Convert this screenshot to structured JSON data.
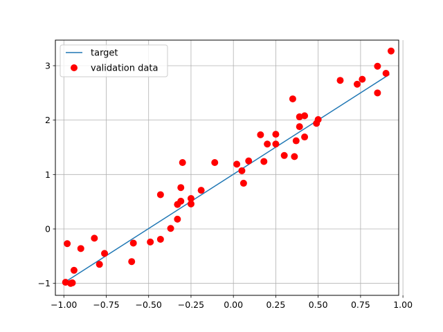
{
  "chart_data": {
    "type": "scatter",
    "title": "",
    "xlabel": "",
    "ylabel": "",
    "xlim": [
      -1.05,
      0.975
    ],
    "ylim": [
      -1.22,
      3.47
    ],
    "grid": true,
    "legend_position": "top-left",
    "x_ticks": [
      -1.0,
      -0.75,
      -0.5,
      -0.25,
      0.0,
      0.25,
      0.5,
      0.75,
      1.0
    ],
    "x_tick_labels": [
      "−1.00",
      "−0.75",
      "−0.50",
      "−0.25",
      "0.00",
      "0.25",
      "0.50",
      "0.75",
      "1.00"
    ],
    "y_ticks": [
      -1,
      0,
      1,
      2,
      3
    ],
    "y_tick_labels": [
      "−1",
      "0",
      "1",
      "2",
      "3"
    ],
    "series": [
      {
        "name": "target",
        "kind": "line",
        "color": "#1f77b4",
        "x": [
          -0.99,
          0.92
        ],
        "y": [
          -0.97,
          2.84
        ]
      },
      {
        "name": "validation data",
        "kind": "scatter",
        "color": "#ff0000",
        "points": [
          [
            -0.99,
            -0.98
          ],
          [
            -0.98,
            -0.27
          ],
          [
            -0.96,
            -1.0
          ],
          [
            -0.95,
            -0.99
          ],
          [
            -0.94,
            -0.76
          ],
          [
            -0.9,
            -0.36
          ],
          [
            -0.82,
            -0.17
          ],
          [
            -0.79,
            -0.65
          ],
          [
            -0.76,
            -0.45
          ],
          [
            -0.6,
            -0.6
          ],
          [
            -0.59,
            -0.26
          ],
          [
            -0.49,
            -0.24
          ],
          [
            -0.43,
            -0.19
          ],
          [
            -0.43,
            0.63
          ],
          [
            -0.37,
            0.01
          ],
          [
            -0.33,
            0.18
          ],
          [
            -0.33,
            0.45
          ],
          [
            -0.31,
            0.51
          ],
          [
            -0.31,
            0.76
          ],
          [
            -0.3,
            1.22
          ],
          [
            -0.25,
            0.46
          ],
          [
            -0.25,
            0.56
          ],
          [
            -0.19,
            0.71
          ],
          [
            -0.11,
            1.22
          ],
          [
            0.02,
            1.19
          ],
          [
            0.05,
            1.07
          ],
          [
            0.06,
            0.84
          ],
          [
            0.09,
            1.25
          ],
          [
            0.16,
            1.73
          ],
          [
            0.18,
            1.24
          ],
          [
            0.2,
            1.56
          ],
          [
            0.25,
            1.74
          ],
          [
            0.25,
            1.56
          ],
          [
            0.3,
            1.35
          ],
          [
            0.35,
            2.39
          ],
          [
            0.36,
            1.33
          ],
          [
            0.37,
            1.62
          ],
          [
            0.39,
            2.06
          ],
          [
            0.39,
            1.88
          ],
          [
            0.42,
            1.69
          ],
          [
            0.42,
            2.08
          ],
          [
            0.49,
            1.94
          ],
          [
            0.5,
            2.01
          ],
          [
            0.63,
            2.73
          ],
          [
            0.73,
            2.66
          ],
          [
            0.76,
            2.75
          ],
          [
            0.85,
            2.99
          ],
          [
            0.85,
            2.5
          ],
          [
            0.9,
            2.86
          ],
          [
            0.93,
            3.27
          ]
        ]
      }
    ]
  }
}
